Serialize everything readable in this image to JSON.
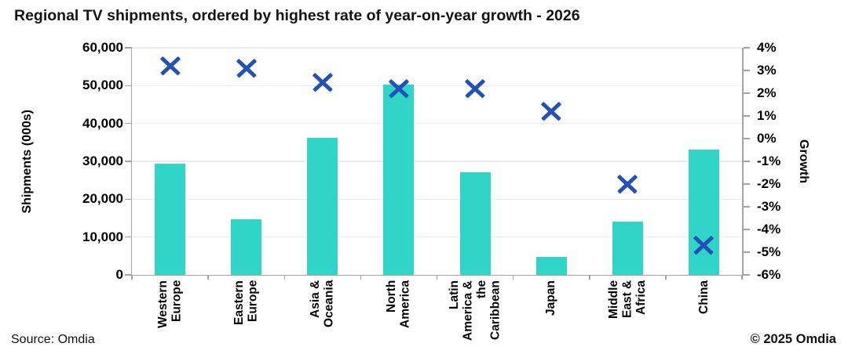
{
  "title": "Regional TV shipments, ordered by highest rate of year-on-year growth - 2026",
  "footer": {
    "source": "Source: Omdia",
    "copyright": "© 2025 Omdia"
  },
  "colors": {
    "bar": "#31d5c7",
    "marker": "#2451b8",
    "gridline": "#eaeaea",
    "axis": "#a3a3a3",
    "text": "#000000"
  },
  "chart_data": {
    "type": "combo",
    "title": "Regional TV shipments, ordered by highest rate of year-on-year growth - 2026",
    "categories": [
      "Western Europe",
      "Eastern Europe",
      "Asia & Oceania",
      "North America",
      "Latin America & the Caribbean",
      "Japan",
      "Middle East & Africa",
      "China"
    ],
    "category_labels": [
      "Western\nEurope",
      "Eastern\nEurope",
      "Asia &\nOceania",
      "North\nAmerica",
      "Latin\nAmerica &\nthe\nCaribbean",
      "Japan",
      "Middle\nEast &\nAfrica",
      "China"
    ],
    "series": [
      {
        "name": "Shipments (000s)",
        "type": "bar",
        "axis": "left",
        "color": "#31d5c7",
        "values": [
          29300,
          14700,
          36300,
          50300,
          27200,
          4800,
          14100,
          33200
        ]
      },
      {
        "name": "Growth",
        "type": "scatter",
        "marker": "x",
        "axis": "right",
        "color": "#2451b8",
        "values": [
          3.2,
          3.1,
          2.5,
          2.2,
          2.2,
          1.2,
          -2,
          -4.7
        ]
      }
    ],
    "left_axis": {
      "label": "Shipments (000s)",
      "min": 0,
      "max": 60000,
      "step": 10000,
      "tick_format": "thousands"
    },
    "right_axis": {
      "label": "Growth",
      "min": -6,
      "max": 4,
      "step": 1,
      "tick_format": "percent"
    },
    "grid": true,
    "legend": false
  }
}
